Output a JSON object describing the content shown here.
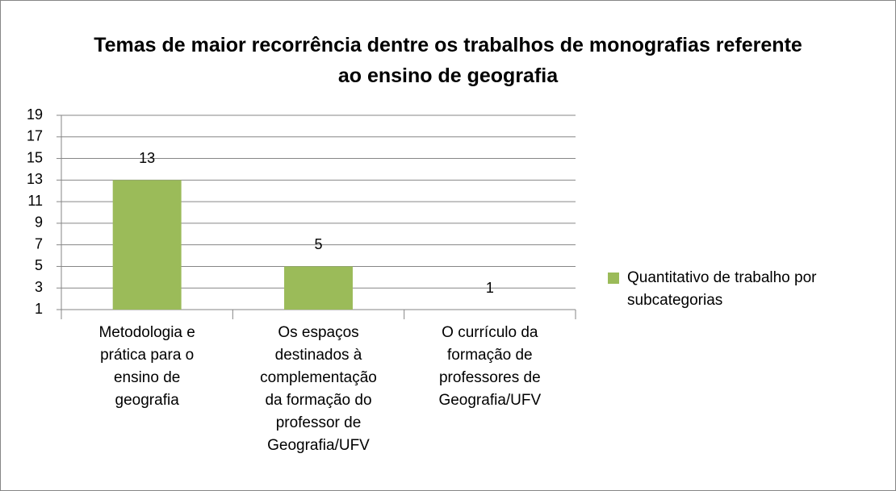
{
  "chart_data": {
    "type": "bar",
    "title": "Temas de maior recorrência dentre os trabalhos de monografias referente ao ensino de geografia",
    "categories": [
      "Metodologia e prática para o ensino de geografia",
      "Os espaços destinados à complementação da formação do professor de Geografia/UFV",
      "O currículo da formação de professores de Geografia/UFV"
    ],
    "series": [
      {
        "name": "Quantitativo de trabalho por subcategorias",
        "color": "#9bbb59",
        "values": [
          13,
          5,
          1
        ]
      }
    ],
    "ylim": [
      1,
      19
    ],
    "yticks": [
      1,
      3,
      5,
      7,
      9,
      11,
      13,
      15,
      17,
      19
    ],
    "grid": true,
    "legend": "right"
  }
}
